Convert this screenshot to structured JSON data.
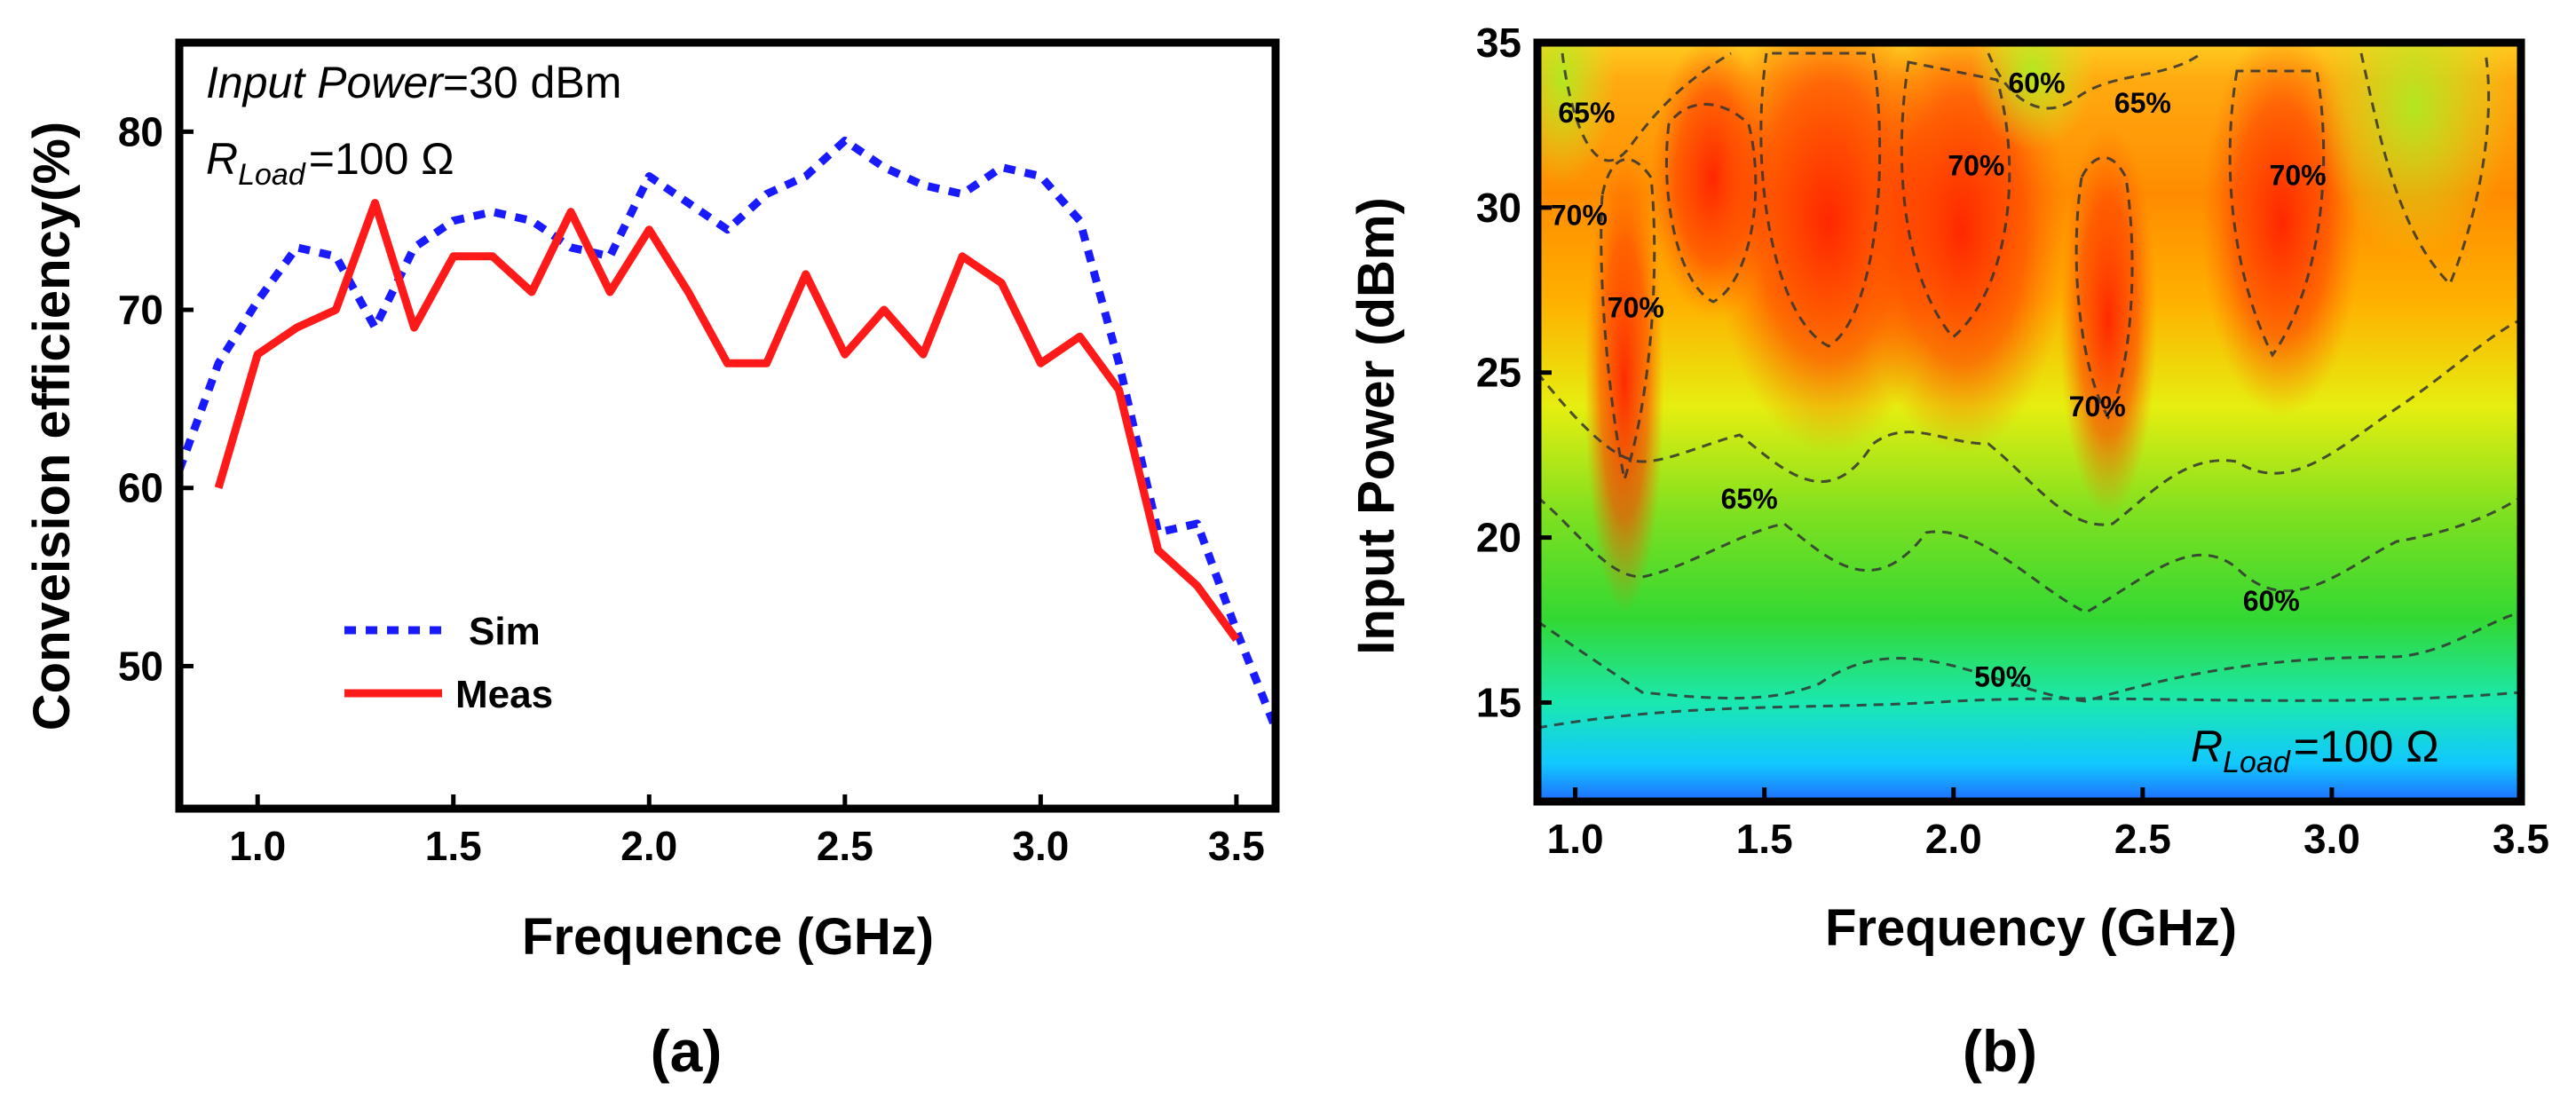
{
  "panel_labels": [
    "(a)",
    "(b)"
  ],
  "chart_data": [
    {
      "type": "line",
      "panel": "(a)",
      "xlabel": "Frequence (GHz)",
      "ylabel": "Conveision efficiency(%)",
      "xlim": [
        0.8,
        3.6
      ],
      "ylim": [
        42,
        85
      ],
      "xticks": [
        "1.0",
        "1.5",
        "2.0",
        "2.5",
        "3.0",
        "3.5"
      ],
      "yticks": [
        "50",
        "60",
        "70",
        "80"
      ],
      "annotations": {
        "input_power_label": "Input Power",
        "input_power_value": "=30 dBm",
        "rload_r": "R",
        "rload_sub": "Load",
        "rload_value": "=100 Ω"
      },
      "legend": {
        "position": "bottom-left",
        "entries": [
          "Sim",
          "Meas"
        ]
      },
      "series": [
        {
          "name": "Sim",
          "style": "dotted",
          "color": "#1a1aff",
          "x": [
            0.8,
            0.9,
            1.0,
            1.1,
            1.2,
            1.3,
            1.4,
            1.5,
            1.6,
            1.7,
            1.8,
            1.9,
            2.0,
            2.1,
            2.2,
            2.3,
            2.4,
            2.5,
            2.6,
            2.7,
            2.8,
            2.9,
            3.0,
            3.1,
            3.2,
            3.3,
            3.4,
            3.5,
            3.6
          ],
          "y": [
            61,
            67,
            70.5,
            73.5,
            73,
            69,
            73.5,
            75,
            75.5,
            75,
            73.5,
            73,
            77.5,
            76,
            74.5,
            76.5,
            77.5,
            79.5,
            78,
            77,
            76.5,
            78,
            77.5,
            75,
            67,
            57.5,
            58,
            52,
            46.5
          ]
        },
        {
          "name": "Meas",
          "style": "solid",
          "color": "#ff1a1a",
          "x": [
            0.9,
            1.0,
            1.1,
            1.2,
            1.3,
            1.4,
            1.5,
            1.6,
            1.7,
            1.8,
            1.9,
            2.0,
            2.1,
            2.2,
            2.3,
            2.4,
            2.5,
            2.6,
            2.7,
            2.8,
            2.9,
            3.0,
            3.1,
            3.2,
            3.3,
            3.4,
            3.5
          ],
          "y": [
            60,
            67.5,
            69,
            70,
            76,
            69,
            73,
            73,
            71,
            75.5,
            71,
            74.5,
            71,
            67,
            67,
            72,
            67.5,
            70,
            67.5,
            73,
            71.5,
            67,
            68.5,
            65.5,
            56.5,
            54.5,
            51.5
          ]
        }
      ]
    },
    {
      "type": "heatmap",
      "panel": "(b)",
      "xlabel": "Frequency (GHz)",
      "ylabel": "Input Power (dBm)",
      "xlim": [
        0.9,
        3.5
      ],
      "ylim": [
        12,
        35
      ],
      "xticks": [
        "1.0",
        "1.5",
        "2.0",
        "2.5",
        "3.0",
        "3.5"
      ],
      "yticks": [
        "15",
        "20",
        "25",
        "30",
        "35"
      ],
      "colormap": "rainbow",
      "colors": {
        "low": "#1f7bff",
        "mid": "#33dd33",
        "high": "#ff2a00"
      },
      "annotations": {
        "rload_r": "R",
        "rload_sub": "Load",
        "rload_value": "=100 Ω"
      },
      "contour_labels": [
        {
          "text": "65%",
          "x": 1.03,
          "y": 32.9
        },
        {
          "text": "60%",
          "x": 2.22,
          "y": 33.8
        },
        {
          "text": "65%",
          "x": 2.5,
          "y": 33.2
        },
        {
          "text": "70%",
          "x": 1.01,
          "y": 29.8
        },
        {
          "text": "70%",
          "x": 2.06,
          "y": 31.3
        },
        {
          "text": "70%",
          "x": 2.91,
          "y": 31.0
        },
        {
          "text": "70%",
          "x": 1.16,
          "y": 27.0
        },
        {
          "text": "70%",
          "x": 2.38,
          "y": 24.0
        },
        {
          "text": "65%",
          "x": 1.46,
          "y": 21.2
        },
        {
          "text": "60%",
          "x": 2.84,
          "y": 18.1
        },
        {
          "text": "50%",
          "x": 2.13,
          "y": 15.8
        }
      ]
    }
  ]
}
